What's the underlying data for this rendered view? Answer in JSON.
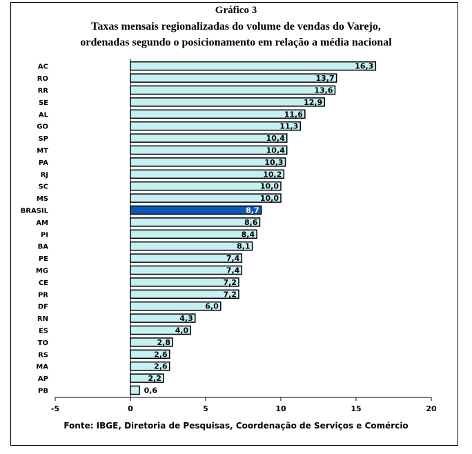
{
  "title": {
    "line1": "Gráfico 3",
    "line2": "Taxas mensais regionalizadas  do volume de vendas do Varejo,",
    "line3": "ordenadas segundo o posicionamento em relação a média nacional"
  },
  "source": "Fonte: IBGE, Diretoria de Pesquisas, Coordenação de Serviços e Comércio",
  "colors": {
    "bar": "#c6f0f4",
    "highlight": "#0b57b7",
    "highlight_label": "#ffffff",
    "outline": "#000000"
  },
  "chart_data": {
    "type": "bar",
    "orientation": "horizontal",
    "categories": [
      "AC",
      "RO",
      "RR",
      "SE",
      "AL",
      "GO",
      "SP",
      "MT",
      "PA",
      "RJ",
      "SC",
      "MS",
      "BRASIL",
      "AM",
      "PI",
      "BA",
      "PE",
      "MG",
      "CE",
      "PR",
      "DF",
      "RN",
      "ES",
      "TO",
      "RS",
      "MA",
      "AP",
      "PB"
    ],
    "values": [
      16.3,
      13.7,
      13.6,
      12.9,
      11.6,
      11.3,
      10.4,
      10.4,
      10.3,
      10.2,
      10.0,
      10.0,
      8.7,
      8.6,
      8.4,
      8.1,
      7.4,
      7.4,
      7.2,
      7.2,
      6.0,
      4.3,
      4.0,
      2.8,
      2.6,
      2.6,
      2.2,
      0.6
    ],
    "data_labels": [
      "16,3",
      "13,7",
      "13,6",
      "12,9",
      "11,6",
      "11,3",
      "10,4",
      "10,4",
      "10,3",
      "10,2",
      "10,0",
      "10,0",
      "8,7",
      "8,6",
      "8,4",
      "8,1",
      "7,4",
      "7,4",
      "7,2",
      "7,2",
      "6,0",
      "4,3",
      "4,0",
      "2,8",
      "2,6",
      "2,6",
      "2,2",
      "0,6"
    ],
    "highlight_category": "BRASIL",
    "xlim": [
      -5,
      20
    ],
    "xticks": [
      -5,
      0,
      5,
      10,
      15,
      20
    ],
    "xtick_labels": [
      "-5",
      "0",
      "5",
      "10",
      "15",
      "20"
    ],
    "grid": false,
    "legend": false
  }
}
